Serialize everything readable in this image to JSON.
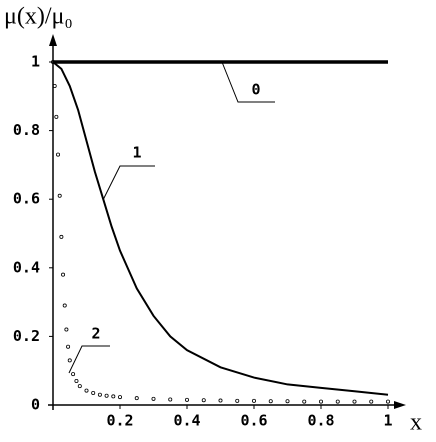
{
  "chart_data": {
    "type": "line",
    "y_label": "μ(x)/μ₀",
    "x_label": "x",
    "xlim": [
      0,
      1
    ],
    "ylim": [
      0,
      1
    ],
    "xticks": [
      0.2,
      0.4,
      0.6,
      0.8,
      1
    ],
    "yticks": [
      0,
      0.2,
      0.4,
      0.6,
      0.8,
      1
    ],
    "series": [
      {
        "name": "0",
        "color": "#000000",
        "style": "thick",
        "x": [
          0,
          1
        ],
        "values": [
          1,
          1
        ]
      },
      {
        "name": "1",
        "color": "#000000",
        "style": "solid",
        "x": [
          0,
          0.025,
          0.05,
          0.075,
          0.1,
          0.125,
          0.15,
          0.175,
          0.2,
          0.25,
          0.3,
          0.35,
          0.4,
          0.5,
          0.6,
          0.7,
          0.8,
          0.9,
          1
        ],
        "values": [
          1,
          0.98,
          0.93,
          0.86,
          0.77,
          0.68,
          0.6,
          0.52,
          0.45,
          0.34,
          0.26,
          0.2,
          0.16,
          0.11,
          0.08,
          0.06,
          0.05,
          0.04,
          0.03
        ]
      },
      {
        "name": "2",
        "color": "#000000",
        "style": "dots",
        "x": [
          0,
          0.005,
          0.01,
          0.015,
          0.02,
          0.025,
          0.03,
          0.035,
          0.04,
          0.045,
          0.05,
          0.06,
          0.07,
          0.08,
          0.1,
          0.12,
          0.14,
          0.16,
          0.18,
          0.2,
          0.25,
          0.3,
          0.35,
          0.4,
          0.45,
          0.5,
          0.55,
          0.6,
          0.65,
          0.7,
          0.75,
          0.8,
          0.85,
          0.9,
          0.95,
          1
        ],
        "values": [
          1,
          0.93,
          0.84,
          0.73,
          0.61,
          0.49,
          0.38,
          0.29,
          0.22,
          0.17,
          0.13,
          0.09,
          0.07,
          0.055,
          0.042,
          0.035,
          0.03,
          0.027,
          0.025,
          0.023,
          0.02,
          0.018,
          0.016,
          0.015,
          0.014,
          0.013,
          0.012,
          0.012,
          0.011,
          0.011,
          0.01,
          0.01,
          0.01,
          0.01,
          0.01,
          0.01
        ]
      }
    ]
  }
}
